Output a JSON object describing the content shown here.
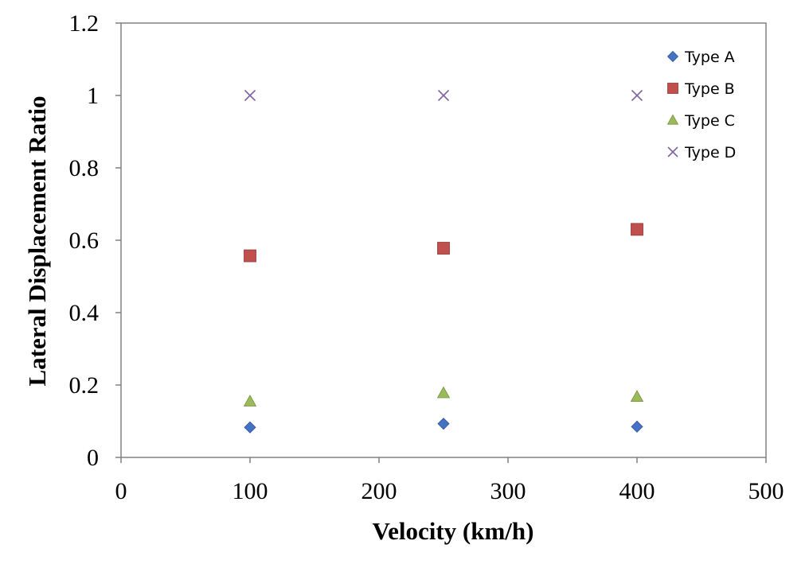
{
  "chart_data": {
    "type": "scatter",
    "title": "",
    "xlabel": "Velocity (km/h)",
    "ylabel": "Lateral Displacement Ratio",
    "xlim": [
      0,
      500
    ],
    "ylim": [
      0,
      1.2
    ],
    "xticks": [
      0,
      100,
      200,
      300,
      400,
      500
    ],
    "yticks": [
      0,
      0.2,
      0.4,
      0.6,
      0.8,
      1.0,
      1.2
    ],
    "xtick_labels": [
      "0",
      "100",
      "200",
      "300",
      "400",
      "500"
    ],
    "ytick_labels": [
      "0",
      "0.2",
      "0.4",
      "0.6",
      "0.8",
      "1",
      "1.2"
    ],
    "grid": false,
    "legend_position": "top-right",
    "series": [
      {
        "name": "Type A",
        "marker": "diamond",
        "color": "#4472C4",
        "x": [
          100,
          250,
          400
        ],
        "y": [
          0.083,
          0.093,
          0.085
        ]
      },
      {
        "name": "Type B",
        "marker": "square",
        "color": "#C0504D",
        "x": [
          100,
          250,
          400
        ],
        "y": [
          0.557,
          0.578,
          0.63
        ]
      },
      {
        "name": "Type C",
        "marker": "triangle",
        "color": "#9BBB59",
        "x": [
          100,
          250,
          400
        ],
        "y": [
          0.155,
          0.178,
          0.168
        ]
      },
      {
        "name": "Type D",
        "marker": "x",
        "color": "#8064A2",
        "x": [
          100,
          250,
          400
        ],
        "y": [
          1.0,
          1.0,
          1.0
        ]
      }
    ]
  }
}
